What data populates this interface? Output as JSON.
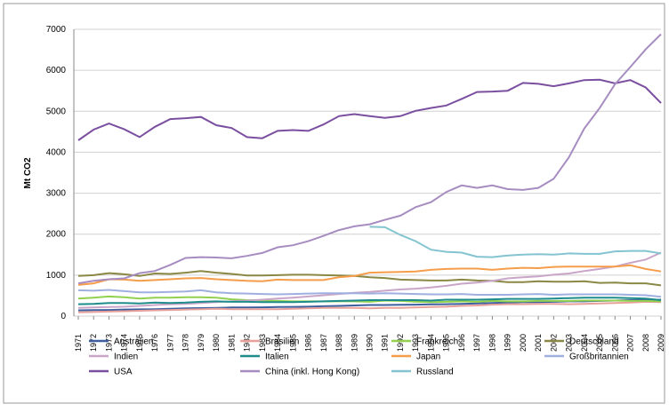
{
  "chart_data": {
    "type": "line",
    "y_label": "Mt CO2",
    "x": [
      1971,
      1972,
      1973,
      1974,
      1975,
      1976,
      1977,
      1978,
      1979,
      1980,
      1981,
      1982,
      1983,
      1984,
      1985,
      1986,
      1987,
      1988,
      1989,
      1990,
      1991,
      1992,
      1993,
      1994,
      1995,
      1996,
      1997,
      1998,
      1999,
      2000,
      2001,
      2002,
      2003,
      2004,
      2005,
      2006,
      2007,
      2008,
      2009
    ],
    "ylim": [
      0,
      7000
    ],
    "yticks": [
      0,
      1000,
      2000,
      3000,
      4000,
      5000,
      6000,
      7000
    ],
    "grid": true,
    "series": [
      {
        "name": "Australien",
        "color": "#3c5fa0",
        "values": [
          140,
          145,
          150,
          160,
          165,
          170,
          180,
          190,
          195,
          200,
          210,
          210,
          215,
          220,
          225,
          230,
          240,
          250,
          260,
          270,
          270,
          275,
          280,
          285,
          290,
          300,
          310,
          320,
          330,
          340,
          340,
          350,
          360,
          360,
          370,
          380,
          390,
          390,
          400
        ]
      },
      {
        "name": "Brasilien",
        "color": "#e8a19a",
        "values": [
          90,
          100,
          110,
          120,
          130,
          140,
          150,
          160,
          170,
          180,
          170,
          170,
          170,
          170,
          180,
          190,
          200,
          200,
          200,
          190,
          200,
          200,
          210,
          220,
          230,
          250,
          260,
          280,
          290,
          290,
          300,
          300,
          290,
          300,
          310,
          320,
          330,
          350,
          340
        ]
      },
      {
        "name": "Frankreich",
        "color": "#92d050",
        "values": [
          430,
          450,
          480,
          460,
          430,
          450,
          450,
          460,
          460,
          450,
          410,
          390,
          380,
          370,
          360,
          360,
          360,
          360,
          360,
          350,
          380,
          370,
          350,
          340,
          350,
          360,
          350,
          370,
          360,
          360,
          370,
          370,
          370,
          380,
          380,
          380,
          370,
          370,
          360
        ]
      },
      {
        "name": "Deutschland",
        "color": "#8b8744",
        "values": [
          980,
          1000,
          1050,
          1020,
          980,
          1040,
          1030,
          1060,
          1100,
          1060,
          1030,
          990,
          990,
          1000,
          1010,
          1010,
          1000,
          990,
          980,
          950,
          930,
          890,
          880,
          870,
          870,
          890,
          870,
          860,
          830,
          830,
          850,
          840,
          840,
          850,
          810,
          820,
          800,
          800,
          750
        ]
      },
      {
        "name": "Indien",
        "color": "#c9a5c8",
        "values": [
          200,
          210,
          220,
          230,
          250,
          270,
          290,
          300,
          320,
          340,
          360,
          380,
          400,
          430,
          450,
          480,
          510,
          540,
          570,
          590,
          620,
          650,
          670,
          700,
          740,
          790,
          820,
          860,
          920,
          950,
          970,
          1010,
          1040,
          1100,
          1150,
          1210,
          1300,
          1380,
          1550
        ]
      },
      {
        "name": "Italien",
        "color": "#1f8c8c",
        "values": [
          290,
          300,
          320,
          320,
          310,
          330,
          320,
          330,
          350,
          360,
          350,
          350,
          340,
          340,
          340,
          350,
          360,
          370,
          380,
          390,
          390,
          390,
          390,
          380,
          400,
          400,
          400,
          410,
          420,
          420,
          420,
          430,
          440,
          450,
          450,
          450,
          440,
          430,
          390
        ]
      },
      {
        "name": "Japan",
        "color": "#f59d4a",
        "values": [
          760,
          800,
          900,
          890,
          860,
          880,
          900,
          920,
          930,
          900,
          880,
          860,
          850,
          890,
          880,
          880,
          880,
          950,
          980,
          1060,
          1070,
          1080,
          1090,
          1130,
          1150,
          1160,
          1160,
          1130,
          1160,
          1180,
          1170,
          1200,
          1210,
          1210,
          1210,
          1210,
          1240,
          1150,
          1090
        ]
      },
      {
        "name": "Großbritannien",
        "color": "#9fafe0",
        "values": [
          630,
          620,
          640,
          610,
          580,
          580,
          590,
          600,
          630,
          580,
          560,
          550,
          540,
          530,
          540,
          550,
          560,
          560,
          560,
          550,
          560,
          550,
          540,
          530,
          530,
          540,
          520,
          520,
          520,
          530,
          540,
          520,
          530,
          530,
          530,
          530,
          520,
          510,
          470
        ]
      },
      {
        "name": "USA",
        "color": "#7b4fa0",
        "values": [
          4290,
          4550,
          4700,
          4560,
          4370,
          4620,
          4810,
          4830,
          4860,
          4660,
          4590,
          4370,
          4340,
          4520,
          4540,
          4520,
          4680,
          4880,
          4930,
          4880,
          4840,
          4880,
          5010,
          5080,
          5140,
          5300,
          5470,
          5480,
          5500,
          5690,
          5670,
          5610,
          5680,
          5760,
          5770,
          5680,
          5760,
          5580,
          5200
        ]
      },
      {
        "name": "China (inkl. Hong Kong)",
        "color": "#a68cc0",
        "values": [
          800,
          860,
          900,
          920,
          1050,
          1100,
          1250,
          1420,
          1440,
          1430,
          1410,
          1470,
          1540,
          1680,
          1730,
          1830,
          1960,
          2100,
          2190,
          2240,
          2350,
          2450,
          2660,
          2780,
          3030,
          3190,
          3130,
          3190,
          3100,
          3080,
          3130,
          3350,
          3880,
          4580,
          5080,
          5660,
          6080,
          6510,
          6880
        ]
      },
      {
        "name": "Russland",
        "color": "#84c4d0",
        "values": [
          null,
          null,
          null,
          null,
          null,
          null,
          null,
          null,
          null,
          null,
          null,
          null,
          null,
          null,
          null,
          null,
          null,
          null,
          null,
          2180,
          2170,
          1980,
          1830,
          1620,
          1570,
          1550,
          1450,
          1440,
          1480,
          1500,
          1510,
          1500,
          1530,
          1520,
          1520,
          1580,
          1590,
          1590,
          1530
        ]
      }
    ]
  }
}
